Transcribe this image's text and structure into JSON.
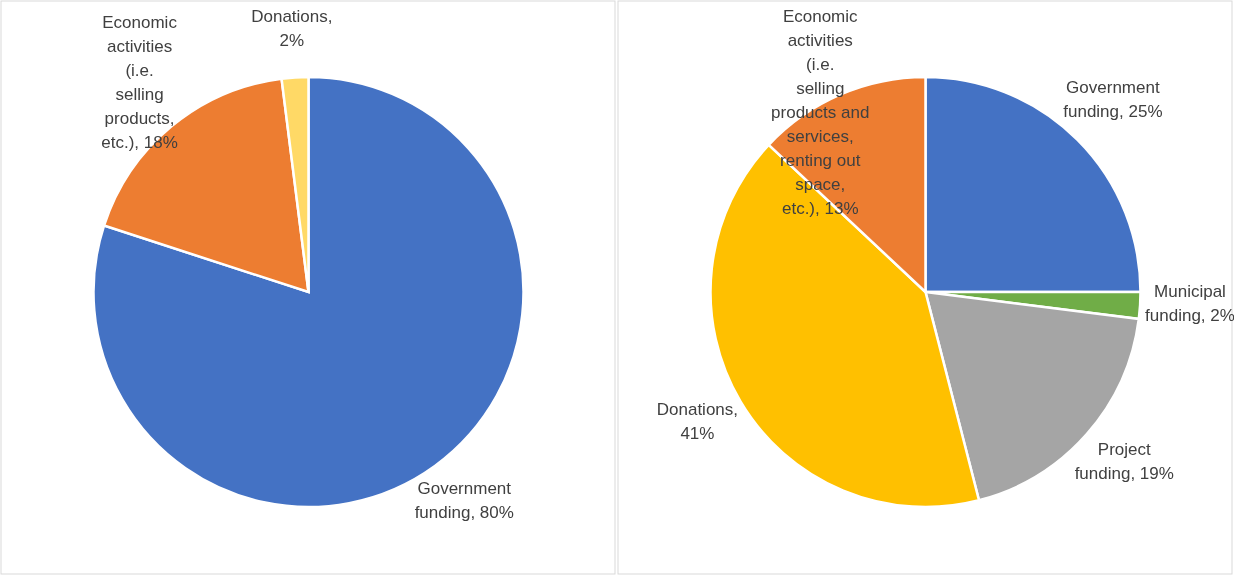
{
  "chart_data": [
    {
      "type": "pie",
      "categories": [
        "Government funding",
        "Economic activities (i.e. selling products, etc.)",
        "Donations"
      ],
      "values": [
        80,
        18,
        2
      ],
      "colors": [
        "#4472c4",
        "#ed7d31",
        "#ffd966"
      ],
      "value_labels": [
        ", 80%",
        ", 18%",
        ", 2%"
      ]
    },
    {
      "type": "pie",
      "categories": [
        "Government funding",
        "Municipal funding",
        "Project funding",
        "Donations",
        "Economic activities (i.e. selling products and services, renting out space, etc.)"
      ],
      "values": [
        25,
        2,
        19,
        41,
        13
      ],
      "colors": [
        "#4472c4",
        "#70ad47",
        "#a5a5a5",
        "#ffc000",
        "#ed7d31"
      ],
      "value_labels": [
        ", 25%",
        ", 2%",
        ", 19%",
        ", 41%",
        ", 13%"
      ]
    }
  ]
}
